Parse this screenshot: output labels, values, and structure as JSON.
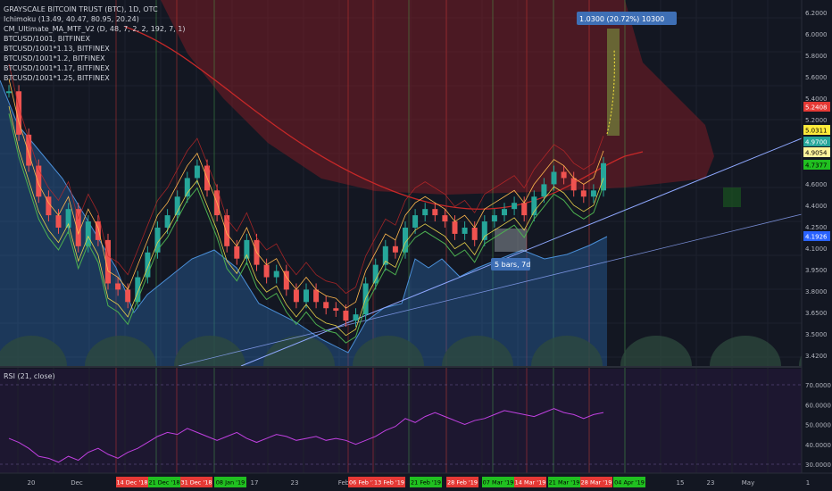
{
  "colors": {
    "background": "#131722",
    "grid": "#1e222d",
    "candle_up": "#26a69a",
    "candle_down": "#ef5350",
    "ma_red": "#c62828",
    "band_orange": "#ffb74d",
    "band_yellow": "#e6d04a",
    "band_green": "#4caf50",
    "ref_area": "#2b6cb0",
    "trend_line": "#8fa8ff",
    "rsi_line": "#c040e0",
    "rsi_bg": "#1d1730",
    "vert_green": "#4caf50",
    "vert_red": "#e53935",
    "cloud_red": "#7a1c24",
    "cloud_green": "#1b5e20",
    "tag_red": "#e53935",
    "tag_green": "#20c020"
  },
  "chart": {
    "header": "GRAYSCALE BITCOIN TRUST (BTC), 1D, OTC",
    "legends": [
      "Ichimoku (13.49, 40.47, 80.95, 20.24)",
      "CM_Ultimate_MA_MTF_V2 (D, 48, 7, 2, 2, 192, 7, 1)",
      "BTCUSD/1001, BITFINEX",
      "BTCUSD/1001*1.13, BITFINEX",
      "BTCUSD/1001*1.2, BITFINEX",
      "BTCUSD/1001*1.17, BITFINEX",
      "BTCUSD/1001*1.25, BITFINEX"
    ],
    "measure_label": "1.0300 (20.72%) 10300",
    "bars_label": "5 bars, 7d",
    "price_axis_ticks": [
      "6.2000",
      "6.0000",
      "5.8000",
      "5.6000",
      "5.4000",
      "5.2000",
      "5.0000",
      "4.8000",
      "4.6000",
      "4.4000",
      "4.2500",
      "4.1000",
      "3.9500",
      "3.8000",
      "3.6500",
      "3.5000",
      "3.4200"
    ],
    "price_tags": [
      {
        "label": "5.2408",
        "color": "#e53935",
        "text_color": "#ffffff",
        "value": 5.2408
      },
      {
        "label": "5.0311",
        "color": "#ffeb3b",
        "text_color": "#000000",
        "value": 5.0311
      },
      {
        "label": "4.9700",
        "color": "#26a69a",
        "text_color": "#ffffff",
        "value": 4.97
      },
      {
        "label": "4.9054",
        "color": "#fff59d",
        "text_color": "#000000",
        "value": 4.9054
      },
      {
        "label": "4.7377",
        "color": "#20c020",
        "text_color": "#000000",
        "value": 4.7377
      },
      {
        "label": "4.1926",
        "color": "#2962ff",
        "text_color": "#ffffff",
        "value": 4.1926
      }
    ]
  },
  "rsi": {
    "label": "RSI (21, close)",
    "ticks": [
      "70.0000",
      "60.0000",
      "50.0000",
      "40.0000",
      "30.0000"
    ]
  },
  "x_axis": {
    "ticks": [
      "20",
      "Dec",
      "17",
      "23",
      "Feb",
      "11",
      "18",
      "25",
      "15",
      "23",
      "May",
      "1"
    ],
    "date_tags": [
      {
        "label": "14 Dec '18",
        "color": "red"
      },
      {
        "label": "21 Dec '18",
        "color": "green"
      },
      {
        "label": "31 Dec '18",
        "color": "red"
      },
      {
        "label": "08 Jan '19",
        "color": "green"
      },
      {
        "label": "06 Feb '19",
        "color": "red"
      },
      {
        "label": "13 Feb '19",
        "color": "red"
      },
      {
        "label": "21 Feb '19",
        "color": "green"
      },
      {
        "label": "28 Feb '19",
        "color": "red"
      },
      {
        "label": "07 Mar '19",
        "color": "green"
      },
      {
        "label": "14 Mar '19",
        "color": "red"
      },
      {
        "label": "21 Mar '19",
        "color": "green"
      },
      {
        "label": "28 Mar '19",
        "color": "red"
      },
      {
        "label": "04 Apr '19",
        "color": "green"
      }
    ]
  },
  "chart_data": {
    "type": "line",
    "title": "GRAYSCALE BITCOIN TRUST (BTC), 1D, OTC",
    "y_range": [
      3.42,
      6.2
    ],
    "series": [
      {
        "name": "GRAYSCALE BITCOIN TRUST (BTC)",
        "values": [
          5.55,
          5.2,
          4.95,
          4.7,
          4.55,
          4.45,
          4.6,
          4.3,
          4.5,
          4.35,
          4.0,
          3.95,
          3.85,
          4.05,
          4.25,
          4.45,
          4.55,
          4.7,
          4.85,
          4.95,
          4.75,
          4.55,
          4.3,
          4.2,
          4.35,
          4.15,
          4.05,
          4.1,
          3.95,
          3.85,
          3.95,
          3.85,
          3.8,
          3.78,
          3.7,
          3.75,
          4.0,
          4.15,
          4.3,
          4.25,
          4.45,
          4.55,
          4.6,
          4.55,
          4.5,
          4.4,
          4.45,
          4.35,
          4.5,
          4.55,
          4.6,
          4.65,
          4.55,
          4.7,
          4.8,
          4.9,
          4.85,
          4.75,
          4.7,
          4.75,
          4.97
        ]
      }
    ],
    "rsi_values": [
      43,
      41,
      38,
      34,
      33,
      31,
      34,
      32,
      36,
      38,
      35,
      33,
      36,
      38,
      41,
      44,
      46,
      45,
      48,
      46,
      44,
      42,
      44,
      46,
      43,
      41,
      43,
      45,
      44,
      42,
      43,
      44,
      42,
      43,
      42,
      40,
      42,
      44,
      47,
      49,
      53,
      51,
      54,
      56,
      54,
      52,
      50,
      52,
      53,
      55,
      57,
      56,
      55,
      54,
      56,
      58,
      56,
      55,
      53,
      55,
      56
    ]
  }
}
